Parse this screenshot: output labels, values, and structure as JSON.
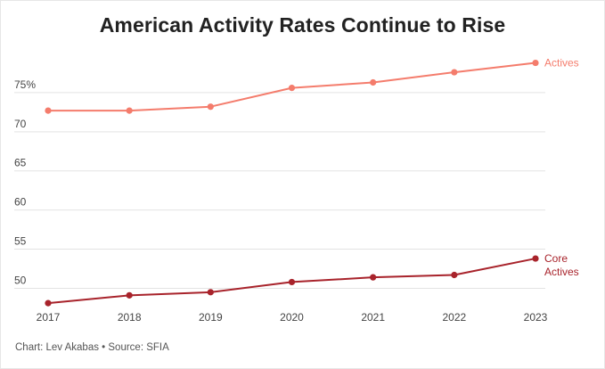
{
  "title": "American Activity Rates Continue to Rise",
  "footer": "Chart: Lev Akabas • Source: SFIA",
  "chart_data": {
    "type": "line",
    "title": "American Activity Rates Continue to Rise",
    "xlabel": "",
    "ylabel": "",
    "x": [
      "2017",
      "2018",
      "2019",
      "2020",
      "2021",
      "2022",
      "2023"
    ],
    "ylim": [
      48,
      80
    ],
    "yticks": [
      50,
      55,
      60,
      65,
      70,
      75
    ],
    "ytick_labels": [
      "50",
      "55",
      "60",
      "65",
      "70",
      "75%"
    ],
    "grid": true,
    "series": [
      {
        "name": "Actives",
        "label_lines": [
          "Actives"
        ],
        "color": "#f47c6c",
        "values": [
          72.7,
          72.7,
          73.2,
          75.6,
          76.3,
          77.6,
          78.8
        ]
      },
      {
        "name": "Core Actives",
        "label_lines": [
          "Core",
          "Actives"
        ],
        "color": "#a8232b",
        "values": [
          48.1,
          49.1,
          49.5,
          50.8,
          51.4,
          51.7,
          53.8
        ]
      }
    ]
  }
}
